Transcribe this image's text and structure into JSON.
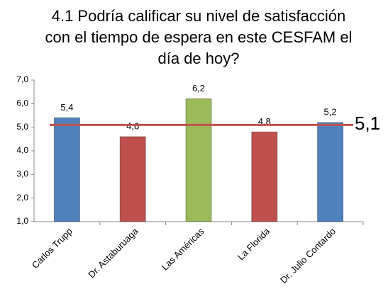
{
  "chart_data": {
    "type": "bar",
    "title": "4.1 Podría calificar su nivel de satisfacción con el tiempo de espera en este CESFAM el día de hoy?",
    "categories": [
      "Carlos Trupp",
      "Dr. Astaburuaga",
      "Las Américas",
      "La Florida",
      "Dr. Julio Contardo"
    ],
    "values": [
      5.4,
      4.6,
      6.2,
      4.8,
      5.2
    ],
    "value_labels": [
      "5,4",
      "4,6",
      "6,2",
      "4,8",
      "5,2"
    ],
    "colors": [
      "#4f81bd",
      "#c0504d",
      "#9bbb59",
      "#c0504d",
      "#4f81bd"
    ],
    "ylim": [
      1,
      7
    ],
    "yticks": [
      {
        "value": 1,
        "label": "1,0"
      },
      {
        "value": 2,
        "label": "2,0"
      },
      {
        "value": 3,
        "label": "3,0"
      },
      {
        "value": 4,
        "label": "4,0"
      },
      {
        "value": 5,
        "label": "5,0"
      },
      {
        "value": 6,
        "label": "6,0"
      },
      {
        "value": 7,
        "label": "7,0"
      }
    ],
    "reference_line": {
      "value": 5.1,
      "label": "5,1",
      "color": "#c0504d"
    }
  }
}
